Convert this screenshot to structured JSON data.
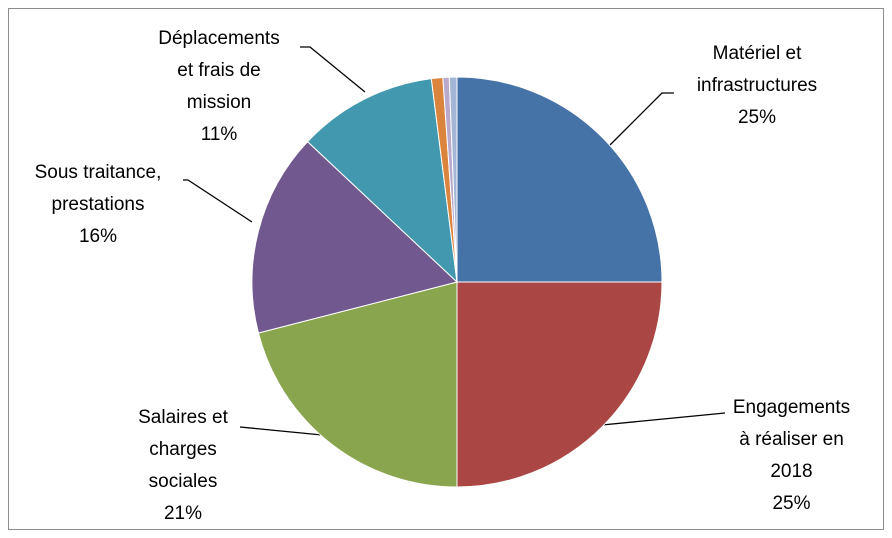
{
  "chart_data": {
    "type": "pie",
    "categories": [
      "Matériel et infrastructures",
      "Engagements à réaliser en 2018",
      "Salaires et charges sociales",
      "Sous traitance, prestations",
      "Déplacements et frais de mission",
      null,
      null,
      null
    ],
    "values": [
      25,
      25,
      21,
      16,
      11,
      0.9,
      0.5,
      0.6
    ],
    "value_labels": [
      "25%",
      "25%",
      "21%",
      "16%",
      "11%",
      null,
      null,
      null
    ],
    "colors": [
      "#4572a7",
      "#aa4643",
      "#89a54e",
      "#71588f",
      "#4198af",
      "#db843d",
      "#b9a9cd",
      "#a4b6d6"
    ]
  }
}
